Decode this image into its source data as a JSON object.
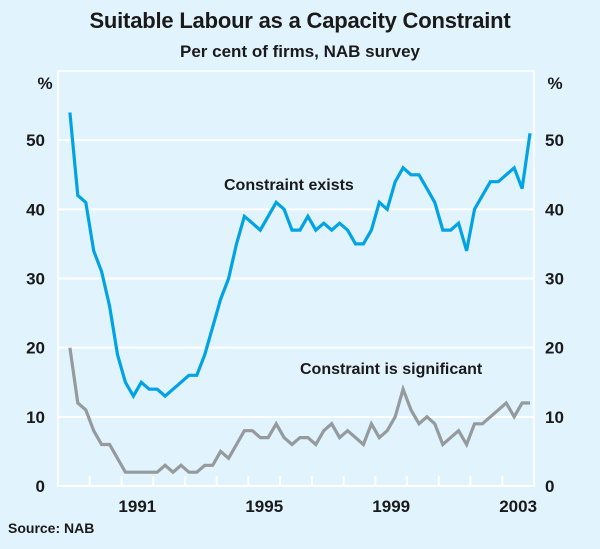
{
  "chart_data": {
    "type": "line",
    "title": "Suitable Labour as a Capacity Constraint",
    "subtitle": "Per cent of firms, NAB survey",
    "source": "Source: NAB",
    "xlabel": "",
    "ylabel_left": "%",
    "ylabel_right": "%",
    "xlim": [
      1989,
      2004
    ],
    "ylim": [
      0,
      60
    ],
    "yticks": [
      0,
      10,
      20,
      30,
      40,
      50
    ],
    "xtick_labels": [
      "1991",
      "1995",
      "1999",
      "2003"
    ],
    "grid": true,
    "x_start": 1989.375,
    "x_step": 0.25,
    "series": [
      {
        "name": "Constraint exists",
        "color": "#00a3e6",
        "values": [
          54,
          42,
          41,
          34,
          31,
          26,
          19,
          15,
          13,
          15,
          14,
          14,
          13,
          14,
          15,
          16,
          16,
          19,
          23,
          27,
          30,
          35,
          39,
          38,
          37,
          39,
          41,
          40,
          37,
          37,
          39,
          37,
          38,
          37,
          38,
          37,
          35,
          35,
          37,
          41,
          40,
          44,
          46,
          45,
          45,
          43,
          41,
          37,
          37,
          38,
          34,
          40,
          42,
          44,
          44,
          45,
          46,
          43,
          51
        ]
      },
      {
        "name": "Constraint is significant",
        "color": "#959a9d",
        "values": [
          20,
          12,
          11,
          8,
          6,
          6,
          4,
          2,
          2,
          2,
          2,
          2,
          3,
          2,
          3,
          2,
          2,
          3,
          3,
          5,
          4,
          6,
          8,
          8,
          7,
          7,
          9,
          7,
          6,
          7,
          7,
          6,
          8,
          9,
          7,
          8,
          7,
          6,
          9,
          7,
          8,
          10,
          14,
          11,
          9,
          10,
          9,
          6,
          7,
          8,
          6,
          9,
          9,
          10,
          11,
          12,
          10,
          12,
          12
        ]
      }
    ],
    "annotations": [
      "Constraint exists",
      "Constraint is significant"
    ]
  }
}
